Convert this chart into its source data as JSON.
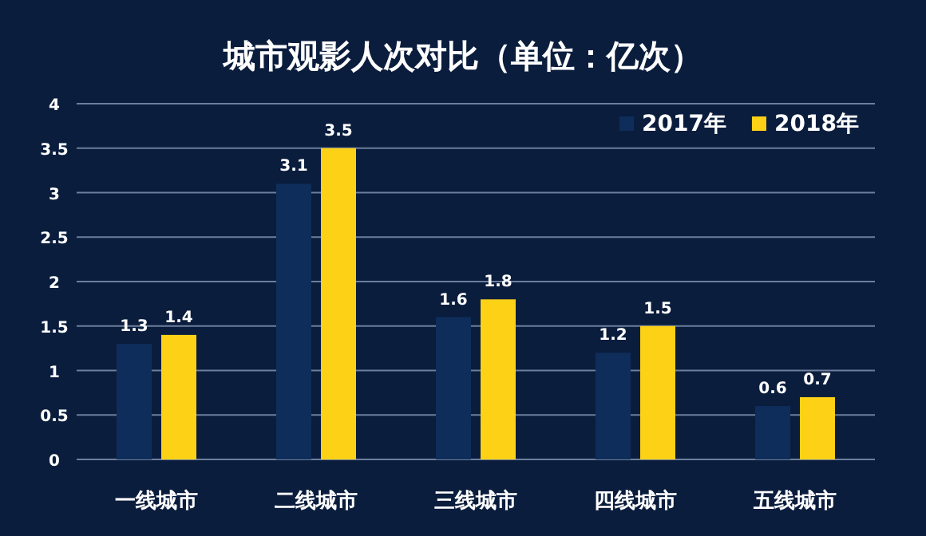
{
  "chart_data": {
    "type": "bar",
    "title": "城市观影人次对比（单位：亿次）",
    "categories": [
      "一线城市",
      "二线城市",
      "三线城市",
      "四线城市",
      "五线城市"
    ],
    "series": [
      {
        "name": "2017年",
        "color": "#0f2d5a",
        "values": [
          1.3,
          3.1,
          1.6,
          1.2,
          0.6
        ]
      },
      {
        "name": "2018年",
        "color": "#fcd116",
        "values": [
          1.4,
          3.5,
          1.8,
          1.5,
          0.7
        ]
      }
    ],
    "ylim": [
      0,
      4
    ],
    "yticks": [
      0,
      0.5,
      1,
      1.5,
      2,
      2.5,
      3,
      3.5,
      4
    ],
    "grid": "y",
    "legend": "top right",
    "data_labels": true
  }
}
